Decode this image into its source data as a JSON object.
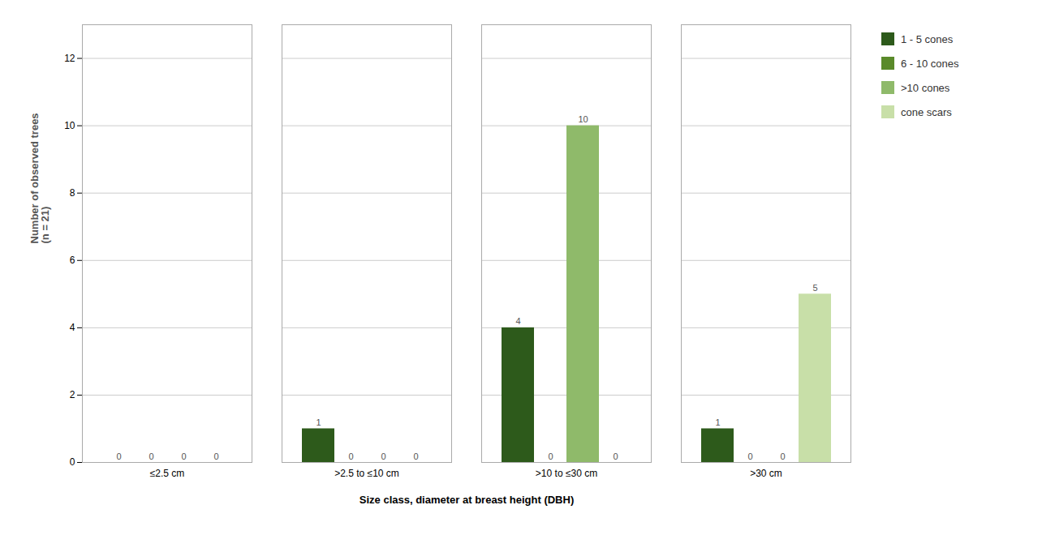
{
  "chart_data": {
    "type": "bar",
    "categories": [
      "≤2.5 cm",
      ">2.5 to ≤10 cm",
      ">10 to ≤30 cm",
      ">30 cm"
    ],
    "series": [
      {
        "name": "1 - 5 cones",
        "color": "#2d5a1b",
        "values": [
          0,
          1,
          4,
          1
        ]
      },
      {
        "name": "6 - 10 cones",
        "color": "#5a8a2a",
        "values": [
          0,
          0,
          0,
          0
        ]
      },
      {
        "name": ">10 cones",
        "color": "#8fba6a",
        "values": [
          0,
          0,
          10,
          0
        ]
      },
      {
        "name": "cone scars",
        "color": "#c8dfa8",
        "values": [
          0,
          0,
          0,
          5
        ]
      }
    ],
    "xlabel": "Size class, diameter at breast height (DBH)",
    "ylabel": "Number of observed trees\n(n = 21)",
    "ylim": [
      0,
      13
    ],
    "yticks": [
      0,
      2,
      4,
      6,
      8,
      10,
      12
    ],
    "grid": true,
    "data_labels": true,
    "legend": "right"
  }
}
